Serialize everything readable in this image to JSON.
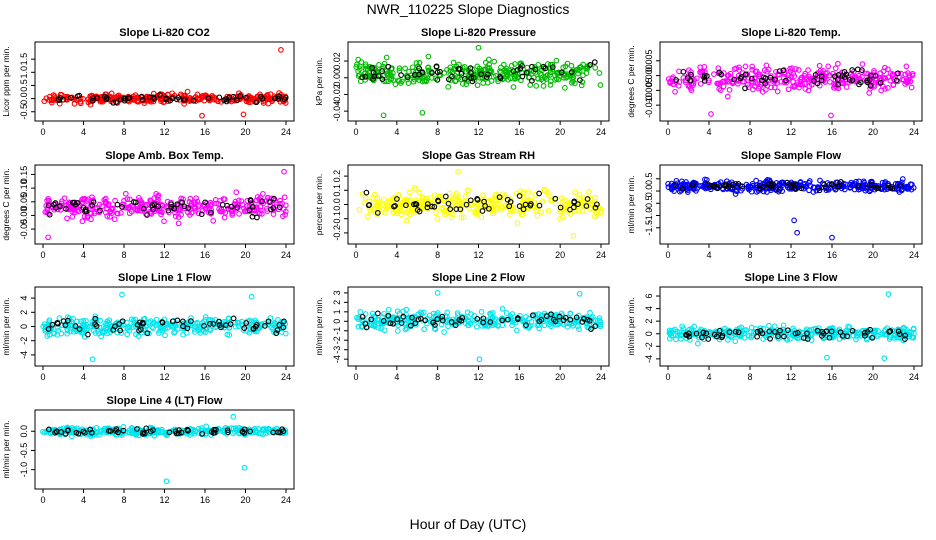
{
  "title": "NWR_110225  Slope Diagnostics",
  "xlabel": "Hour of Day (UTC)",
  "chart_data": [
    {
      "type": "scatter",
      "title": "Slope Li-820 CO2",
      "ylabel": "Licor ppm per min.",
      "color": "#ff0000",
      "xlim": [
        0,
        24
      ],
      "ylim": [
        -0.7,
        2.0
      ],
      "xticks": [
        "0",
        "4",
        "8",
        "12",
        "16",
        "20",
        "24"
      ],
      "yticks": [
        -0.5,
        0.0,
        0.5,
        1.0,
        1.5
      ],
      "ytick_labels": [
        "-0.5",
        "0.0",
        "0.5",
        "1.0",
        "1.5"
      ],
      "center": 0.0,
      "spread": 0.18,
      "outliers": [
        [
          23.5,
          1.85
        ],
        [
          15.7,
          -0.65
        ],
        [
          19.8,
          -0.6
        ]
      ],
      "seed": 11
    },
    {
      "type": "scatter",
      "title": "Slope Li-820 Pressure",
      "ylabel": "kPa per min.",
      "color": "#00bb00",
      "xlim": [
        0,
        24
      ],
      "ylim": [
        -0.047,
        0.038
      ],
      "xticks": [
        "0",
        "4",
        "8",
        "12",
        "16",
        "20",
        "24"
      ],
      "yticks": [
        -0.04,
        -0.02,
        0.0,
        0.02
      ],
      "ytick_labels": [
        "-0.04",
        "-0.02",
        "0.00",
        "0.02"
      ],
      "center": 0.005,
      "spread": 0.014,
      "outliers": [
        [
          12.0,
          0.036
        ],
        [
          2.7,
          -0.045
        ],
        [
          6.5,
          -0.042
        ]
      ],
      "seed": 23
    },
    {
      "type": "scatter",
      "title": "Slope Li-820 Temp.",
      "ylabel": "degrees C per min.",
      "color": "#ff00ff",
      "xlim": [
        0,
        24
      ],
      "ylim": [
        -0.014,
        0.01
      ],
      "xticks": [
        "0",
        "4",
        "8",
        "12",
        "16",
        "20",
        "24"
      ],
      "yticks": [
        -0.01,
        -0.005,
        0.0,
        0.005
      ],
      "ytick_labels": [
        "-0.010",
        "-0.005",
        "0.000",
        "0.005"
      ],
      "center": -0.001,
      "spread": 0.004,
      "outliers": [
        [
          15.9,
          -0.0135
        ],
        [
          4.2,
          -0.013
        ]
      ],
      "seed": 37
    },
    {
      "type": "scatter",
      "title": "Slope Amb. Box Temp.",
      "ylabel": "degrees C per min.",
      "color": "#ff00ff",
      "xlim": [
        0,
        24
      ],
      "ylim": [
        -0.09,
        0.17
      ],
      "xticks": [
        "0",
        "4",
        "8",
        "12",
        "16",
        "20",
        "24"
      ],
      "yticks": [
        -0.05,
        0.0,
        0.05,
        0.1,
        0.15
      ],
      "ytick_labels": [
        "-0.05",
        "0.00",
        "0.05",
        "0.10",
        "0.15"
      ],
      "center": 0.03,
      "spread": 0.04,
      "outliers": [
        [
          23.8,
          0.16
        ],
        [
          0.5,
          -0.08
        ]
      ],
      "seed": 41
    },
    {
      "type": "scatter",
      "title": "Slope Gas Stream RH",
      "ylabel": "percent per min.",
      "color": "#ffff00",
      "xlim": [
        0,
        24
      ],
      "ylim": [
        -0.25,
        0.25
      ],
      "xticks": [
        "0",
        "4",
        "8",
        "12",
        "16",
        "20",
        "24"
      ],
      "yticks": [
        -0.2,
        -0.1,
        0.0,
        0.1,
        0.2
      ],
      "ytick_labels": [
        "-0.2",
        "-0.1",
        "0.0",
        "0.1",
        "0.2"
      ],
      "center": 0.0,
      "spread": 0.09,
      "outliers": [
        [
          10.0,
          0.23
        ],
        [
          21.3,
          -0.22
        ]
      ],
      "seed": 53
    },
    {
      "type": "scatter",
      "title": "Slope Sample Flow",
      "ylabel": "ml/min per min.",
      "color": "#0000ff",
      "xlim": [
        0,
        24
      ],
      "ylim": [
        -2.0,
        0.9
      ],
      "xticks": [
        "0",
        "4",
        "8",
        "12",
        "16",
        "20",
        "24"
      ],
      "yticks": [
        -1.5,
        -1.0,
        -0.5,
        0.0,
        0.5
      ],
      "ytick_labels": [
        "-1.5",
        "-1.0",
        "-0.5",
        "0.0",
        "0.5"
      ],
      "center": 0.2,
      "spread": 0.22,
      "outliers": [
        [
          16.0,
          -1.9
        ],
        [
          12.3,
          -1.2
        ],
        [
          12.6,
          -1.7
        ]
      ],
      "seed": 67
    },
    {
      "type": "scatter",
      "title": "Slope Line 1 Flow",
      "ylabel": "ml/min per min.",
      "color": "#00e5ee",
      "xlim": [
        0,
        24
      ],
      "ylim": [
        -5.0,
        5.0
      ],
      "xticks": [
        "0",
        "4",
        "8",
        "12",
        "16",
        "20",
        "24"
      ],
      "yticks": [
        -4,
        -2,
        0,
        2,
        4
      ],
      "ytick_labels": [
        "-4",
        "-2",
        "0",
        "2",
        "4"
      ],
      "center": 0.0,
      "spread": 1.2,
      "outliers": [
        [
          7.8,
          4.5
        ],
        [
          4.9,
          -4.6
        ],
        [
          20.6,
          4.2
        ]
      ],
      "seed": 71
    },
    {
      "type": "scatter",
      "title": "Slope Line 2 Flow",
      "ylabel": "ml/min per min.",
      "color": "#00e5ee",
      "xlim": [
        0,
        24
      ],
      "ylim": [
        -4.3,
        3.2
      ],
      "xticks": [
        "0",
        "4",
        "8",
        "12",
        "16",
        "20",
        "24"
      ],
      "yticks": [
        -4,
        -3,
        -2,
        -1,
        0,
        1,
        2,
        3
      ],
      "ytick_labels": [
        "-4",
        "-3",
        "-2",
        "-1",
        "0",
        "1",
        "2",
        "3"
      ],
      "center": 0.1,
      "spread": 0.9,
      "outliers": [
        [
          8.0,
          3.0
        ],
        [
          12.1,
          -4.0
        ],
        [
          21.9,
          2.9
        ]
      ],
      "seed": 83
    },
    {
      "type": "scatter",
      "title": "Slope Line 3 Flow",
      "ylabel": "ml/min per min.",
      "color": "#00e5ee",
      "xlim": [
        0,
        24
      ],
      "ylim": [
        -4.5,
        6.8
      ],
      "xticks": [
        "0",
        "4",
        "8",
        "12",
        "16",
        "20",
        "24"
      ],
      "yticks": [
        -4,
        -2,
        0,
        2,
        4,
        6
      ],
      "ytick_labels": [
        "-4",
        "-2",
        "0",
        "2",
        "4",
        "6"
      ],
      "center": 0.0,
      "spread": 1.0,
      "outliers": [
        [
          21.5,
          6.3
        ],
        [
          21.1,
          -3.9
        ],
        [
          15.5,
          -3.8
        ]
      ],
      "seed": 97
    },
    {
      "type": "scatter",
      "title": "Slope Line 4 (LT) Flow",
      "ylabel": "ml/min per min.",
      "color": "#00e5ee",
      "xlim": [
        0,
        24
      ],
      "ylim": [
        -1.4,
        0.45
      ],
      "xticks": [
        "0",
        "4",
        "8",
        "12",
        "16",
        "20",
        "24"
      ],
      "yticks": [
        -1.0,
        -0.5,
        0.0
      ],
      "ytick_labels": [
        "-1.0",
        "-0.5",
        "0.0"
      ],
      "center": 0.0,
      "spread": 0.1,
      "outliers": [
        [
          12.2,
          -1.3
        ],
        [
          18.8,
          0.38
        ],
        [
          19.9,
          -0.95
        ]
      ],
      "seed": 101
    }
  ]
}
